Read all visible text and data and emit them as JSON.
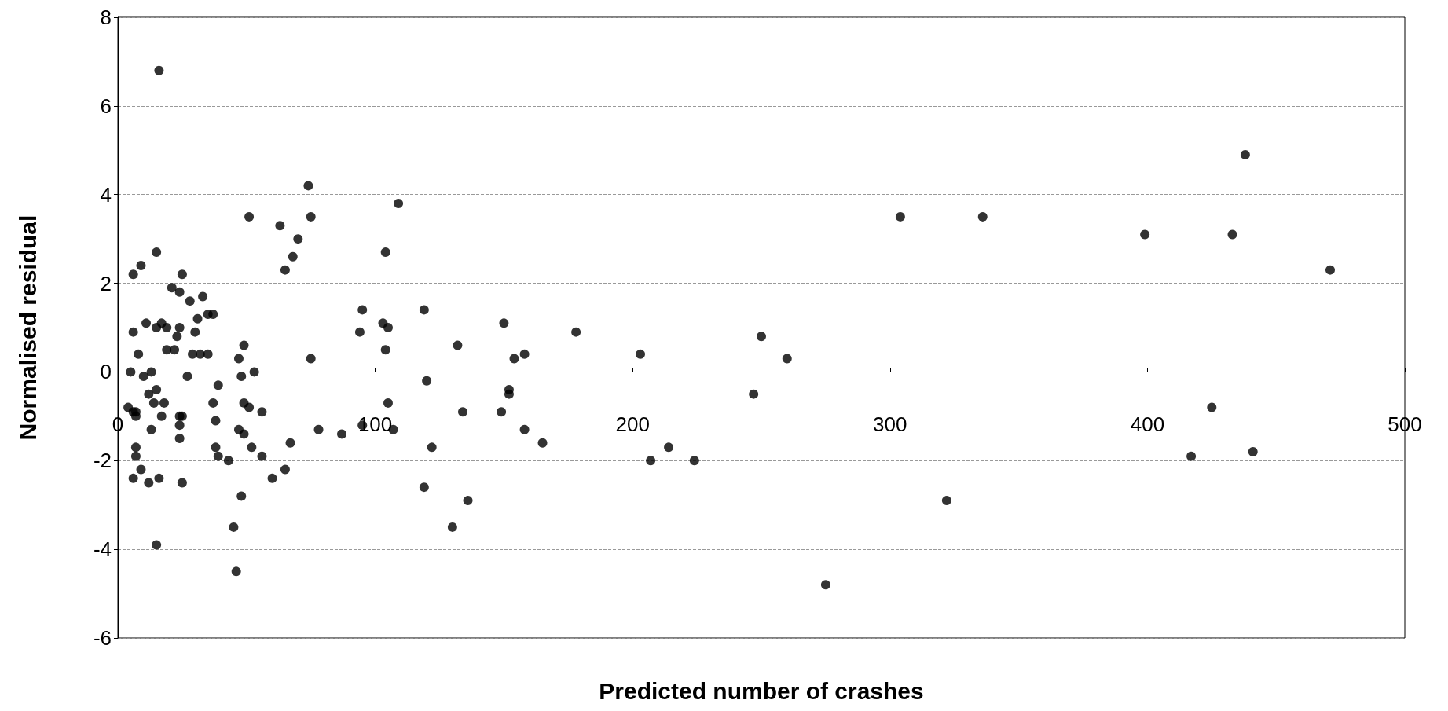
{
  "chart_data": {
    "type": "scatter",
    "xlabel": "Predicted number of crashes",
    "ylabel": "Normalised residual",
    "xlim": [
      0,
      500
    ],
    "xticks": [
      0,
      100,
      200,
      300,
      400,
      500
    ],
    "ylim": [
      -6,
      8
    ],
    "yticks": [
      -6,
      -4,
      -2,
      0,
      2,
      4,
      6,
      8
    ],
    "grid": "y",
    "marker": "circle",
    "series": [
      {
        "color": "#000000",
        "x": [
          16,
          74,
          75,
          51,
          63,
          70,
          68,
          65,
          75,
          109,
          104,
          103,
          105,
          104,
          105,
          107,
          95,
          94,
          95,
          87,
          78,
          119,
          120,
          122,
          119,
          132,
          134,
          136,
          130,
          150,
          149,
          152,
          152,
          154,
          158,
          158,
          165,
          178,
          203,
          207,
          214,
          224,
          247,
          250,
          260,
          275,
          304,
          322,
          336,
          399,
          417,
          425,
          433,
          441,
          438,
          471,
          4,
          6,
          7,
          5,
          6,
          6,
          7,
          7,
          7,
          6,
          9,
          8,
          9,
          10,
          11,
          12,
          13,
          13,
          12,
          15,
          15,
          15,
          14,
          15,
          16,
          17,
          17,
          18,
          19,
          19,
          21,
          22,
          23,
          24,
          24,
          24,
          24,
          24,
          25,
          25,
          25,
          27,
          28,
          29,
          30,
          31,
          32,
          33,
          35,
          35,
          37,
          37,
          38,
          38,
          39,
          39,
          43,
          45,
          46,
          47,
          47,
          48,
          49,
          49,
          48,
          49,
          51,
          52,
          53,
          56,
          56,
          60,
          65,
          67
        ],
        "values": [
          6.8,
          4.2,
          3.5,
          3.5,
          3.3,
          3.0,
          2.6,
          2.3,
          0.3,
          3.8,
          2.7,
          1.1,
          1.0,
          0.5,
          -0.7,
          -1.3,
          1.4,
          0.9,
          -1.2,
          -1.4,
          -1.3,
          1.4,
          -0.2,
          -1.7,
          -2.6,
          0.6,
          -0.9,
          -2.9,
          -3.5,
          1.1,
          -0.9,
          -0.4,
          -0.5,
          0.3,
          0.4,
          -1.3,
          -1.6,
          0.9,
          0.4,
          -2.0,
          -1.7,
          -2.0,
          -0.5,
          0.8,
          0.3,
          -4.8,
          3.5,
          -2.9,
          3.5,
          3.1,
          -1.9,
          -0.8,
          3.1,
          -1.8,
          4.9,
          2.3,
          -0.8,
          -0.9,
          -0.9,
          0.0,
          2.2,
          0.9,
          -1.0,
          -1.7,
          -1.9,
          -2.4,
          2.4,
          0.4,
          -2.2,
          -0.1,
          1.1,
          -0.5,
          0.0,
          -1.3,
          -2.5,
          2.7,
          1.0,
          -0.4,
          -0.7,
          -3.9,
          -2.4,
          1.1,
          -1.0,
          -0.7,
          0.5,
          1.0,
          1.9,
          0.5,
          0.8,
          1.8,
          1.0,
          -1.0,
          -1.2,
          -1.5,
          2.2,
          -2.5,
          -1.0,
          -0.1,
          1.6,
          0.4,
          0.9,
          1.2,
          0.4,
          1.7,
          1.3,
          0.4,
          1.3,
          -0.7,
          -1.1,
          -1.7,
          -1.9,
          -0.3,
          -2.0,
          -3.5,
          -4.5,
          -1.3,
          0.3,
          -0.1,
          0.6,
          -1.4,
          -2.8,
          -0.7,
          -0.8,
          -1.7,
          0.0,
          -0.9,
          -1.9,
          -2.4,
          -2.2,
          -1.6
        ]
      }
    ]
  }
}
